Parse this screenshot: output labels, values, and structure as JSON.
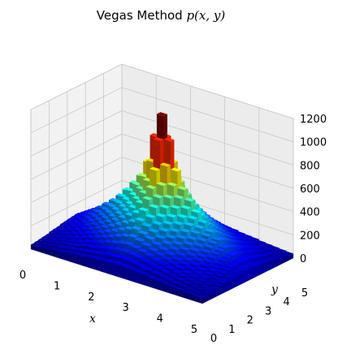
{
  "chart_data": {
    "type": "bar3d",
    "title": "Vegas Method p(x, y)",
    "xlabel": "x",
    "ylabel": "y",
    "zlabel": "",
    "xlim": [
      0,
      5
    ],
    "ylim": [
      0,
      5
    ],
    "zlim": [
      0,
      1200
    ],
    "x_ticks": [
      "0",
      "1",
      "2",
      "3",
      "4",
      "5"
    ],
    "y_ticks": [
      "0",
      "1",
      "2",
      "3",
      "4",
      "5"
    ],
    "z_ticks": [
      "0",
      "200",
      "400",
      "600",
      "800",
      "1000",
      "1200"
    ],
    "grid": true,
    "colormap": "jet",
    "peak": {
      "x": 2.5,
      "y": 2.5,
      "value": 1200
    },
    "grid_size": 25,
    "z_values": [
      [
        40,
        45,
        50,
        55,
        60,
        70,
        75,
        80,
        90,
        95,
        100,
        105,
        110,
        105,
        100,
        95,
        90,
        80,
        75,
        70,
        60,
        55,
        50,
        45,
        40
      ],
      [
        45,
        50,
        60,
        70,
        75,
        85,
        95,
        105,
        115,
        125,
        135,
        140,
        145,
        140,
        135,
        125,
        115,
        105,
        95,
        85,
        75,
        70,
        60,
        50,
        45
      ],
      [
        50,
        60,
        70,
        80,
        90,
        100,
        115,
        130,
        140,
        155,
        170,
        180,
        185,
        180,
        170,
        155,
        140,
        130,
        115,
        100,
        90,
        80,
        70,
        60,
        50
      ],
      [
        55,
        70,
        80,
        90,
        105,
        120,
        135,
        150,
        170,
        190,
        205,
        220,
        230,
        220,
        205,
        190,
        170,
        150,
        135,
        120,
        105,
        90,
        80,
        70,
        55
      ],
      [
        60,
        75,
        90,
        105,
        120,
        140,
        160,
        180,
        200,
        220,
        245,
        265,
        280,
        265,
        245,
        220,
        200,
        180,
        160,
        140,
        120,
        105,
        90,
        75,
        60
      ],
      [
        70,
        85,
        100,
        120,
        140,
        160,
        180,
        205,
        230,
        255,
        285,
        310,
        330,
        310,
        285,
        255,
        230,
        205,
        180,
        160,
        140,
        120,
        100,
        85,
        70
      ],
      [
        75,
        95,
        115,
        135,
        160,
        180,
        205,
        235,
        265,
        295,
        330,
        360,
        390,
        360,
        330,
        295,
        265,
        235,
        205,
        180,
        160,
        135,
        115,
        95,
        75
      ],
      [
        80,
        105,
        130,
        150,
        180,
        205,
        235,
        265,
        300,
        340,
        380,
        420,
        460,
        420,
        380,
        340,
        300,
        265,
        235,
        205,
        180,
        150,
        130,
        105,
        80
      ],
      [
        90,
        115,
        140,
        170,
        200,
        230,
        265,
        300,
        340,
        385,
        430,
        490,
        540,
        490,
        430,
        385,
        340,
        300,
        265,
        230,
        200,
        170,
        140,
        115,
        90
      ],
      [
        95,
        125,
        155,
        190,
        220,
        255,
        295,
        340,
        385,
        430,
        490,
        560,
        620,
        560,
        490,
        430,
        385,
        340,
        295,
        255,
        220,
        190,
        155,
        125,
        95
      ],
      [
        100,
        135,
        170,
        205,
        245,
        285,
        330,
        380,
        430,
        490,
        560,
        650,
        760,
        650,
        560,
        490,
        430,
        380,
        330,
        285,
        245,
        205,
        170,
        135,
        100
      ],
      [
        105,
        140,
        180,
        220,
        265,
        310,
        360,
        420,
        490,
        560,
        650,
        800,
        1000,
        800,
        650,
        560,
        490,
        420,
        360,
        310,
        265,
        220,
        180,
        140,
        105
      ],
      [
        110,
        145,
        185,
        230,
        280,
        330,
        390,
        460,
        540,
        620,
        760,
        1000,
        1200,
        1000,
        760,
        620,
        540,
        460,
        390,
        330,
        280,
        230,
        185,
        145,
        110
      ],
      [
        105,
        140,
        180,
        220,
        265,
        310,
        360,
        420,
        490,
        560,
        650,
        800,
        1000,
        800,
        650,
        560,
        490,
        420,
        360,
        310,
        265,
        220,
        180,
        140,
        105
      ],
      [
        100,
        135,
        170,
        205,
        245,
        285,
        330,
        380,
        430,
        490,
        560,
        650,
        760,
        650,
        560,
        490,
        430,
        380,
        330,
        285,
        245,
        205,
        170,
        135,
        100
      ],
      [
        95,
        125,
        155,
        190,
        220,
        255,
        295,
        340,
        385,
        430,
        490,
        560,
        620,
        560,
        490,
        430,
        385,
        340,
        295,
        255,
        220,
        190,
        155,
        125,
        95
      ],
      [
        90,
        115,
        140,
        170,
        200,
        230,
        265,
        300,
        340,
        385,
        430,
        490,
        540,
        490,
        430,
        385,
        340,
        300,
        265,
        230,
        200,
        170,
        140,
        115,
        90
      ],
      [
        80,
        105,
        130,
        150,
        180,
        205,
        235,
        265,
        300,
        340,
        380,
        420,
        460,
        420,
        380,
        340,
        300,
        265,
        235,
        205,
        180,
        150,
        130,
        105,
        80
      ],
      [
        75,
        95,
        115,
        135,
        160,
        180,
        205,
        235,
        265,
        295,
        330,
        360,
        390,
        360,
        330,
        295,
        265,
        235,
        205,
        180,
        160,
        135,
        115,
        95,
        75
      ],
      [
        70,
        85,
        100,
        120,
        140,
        160,
        180,
        205,
        230,
        255,
        285,
        310,
        330,
        310,
        285,
        255,
        230,
        205,
        180,
        160,
        140,
        120,
        100,
        85,
        70
      ],
      [
        60,
        75,
        90,
        105,
        120,
        140,
        160,
        180,
        200,
        220,
        245,
        265,
        280,
        265,
        245,
        220,
        200,
        180,
        160,
        140,
        120,
        105,
        90,
        75,
        60
      ],
      [
        55,
        70,
        80,
        90,
        105,
        120,
        135,
        150,
        170,
        190,
        205,
        220,
        230,
        220,
        205,
        190,
        170,
        150,
        135,
        120,
        105,
        90,
        80,
        70,
        55
      ],
      [
        50,
        60,
        70,
        80,
        90,
        100,
        115,
        130,
        140,
        155,
        170,
        180,
        185,
        180,
        170,
        155,
        140,
        130,
        115,
        100,
        90,
        80,
        70,
        60,
        50
      ],
      [
        45,
        50,
        60,
        70,
        75,
        85,
        95,
        105,
        115,
        125,
        135,
        140,
        145,
        140,
        135,
        125,
        115,
        105,
        95,
        85,
        75,
        70,
        60,
        50,
        45
      ],
      [
        40,
        45,
        50,
        55,
        60,
        70,
        75,
        80,
        90,
        95,
        100,
        105,
        110,
        105,
        100,
        95,
        90,
        80,
        75,
        70,
        60,
        55,
        50,
        45,
        40
      ]
    ]
  }
}
